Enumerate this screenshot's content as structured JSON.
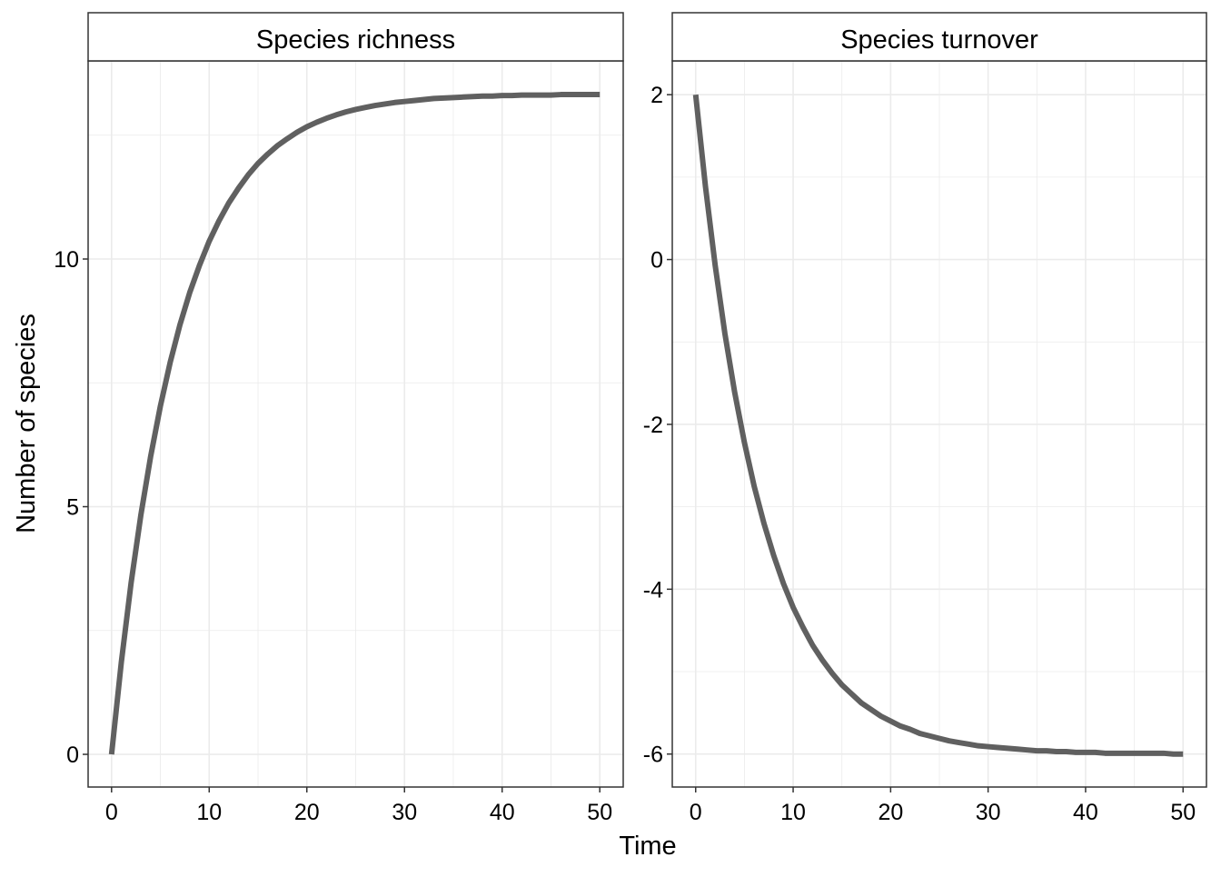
{
  "chart_data": {
    "type": "line",
    "xlabel": "Time",
    "ylabel": "Number of species",
    "line_color": "#606060",
    "panels": [
      {
        "title": "Species richness",
        "xlim": [
          -2.4,
          52.4
        ],
        "ylim": [
          -0.66,
          14.0
        ],
        "xticks": [
          0,
          10,
          20,
          30,
          40,
          50
        ],
        "yticks": [
          0,
          5,
          10
        ],
        "x": [
          0,
          1,
          2,
          3,
          4,
          5,
          6,
          7,
          8,
          9,
          10,
          11,
          12,
          13,
          14,
          15,
          16,
          17,
          18,
          19,
          20,
          21,
          22,
          23,
          24,
          25,
          26,
          27,
          28,
          29,
          30,
          31,
          32,
          33,
          34,
          35,
          36,
          37,
          38,
          39,
          40,
          41,
          42,
          43,
          44,
          45,
          46,
          47,
          48,
          49,
          50
        ],
        "y": [
          0,
          1.86,
          3.46,
          4.83,
          6.01,
          7.03,
          7.91,
          8.67,
          9.32,
          9.87,
          10.36,
          10.77,
          11.13,
          11.43,
          11.7,
          11.93,
          12.12,
          12.29,
          12.43,
          12.56,
          12.67,
          12.76,
          12.84,
          12.91,
          12.97,
          13.02,
          13.06,
          13.1,
          13.13,
          13.16,
          13.18,
          13.2,
          13.22,
          13.24,
          13.25,
          13.26,
          13.27,
          13.28,
          13.29,
          13.29,
          13.3,
          13.3,
          13.31,
          13.31,
          13.31,
          13.31,
          13.32,
          13.32,
          13.32,
          13.32,
          13.32
        ]
      },
      {
        "title": "Species turnover",
        "xlim": [
          -2.4,
          52.4
        ],
        "ylim": [
          -6.4,
          2.41
        ],
        "xticks": [
          0,
          10,
          20,
          30,
          40,
          50
        ],
        "yticks": [
          -6,
          -4,
          -2,
          0,
          2
        ],
        "x": [
          0,
          1,
          2,
          3,
          4,
          5,
          6,
          7,
          8,
          9,
          10,
          11,
          12,
          13,
          14,
          15,
          16,
          17,
          18,
          19,
          20,
          21,
          22,
          23,
          24,
          25,
          26,
          27,
          28,
          29,
          30,
          31,
          32,
          33,
          34,
          35,
          36,
          37,
          38,
          39,
          40,
          41,
          42,
          43,
          44,
          45,
          46,
          47,
          48,
          49,
          50
        ],
        "y": [
          2,
          0.89,
          -0.07,
          -0.9,
          -1.61,
          -2.22,
          -2.75,
          -3.2,
          -3.59,
          -3.93,
          -4.22,
          -4.46,
          -4.68,
          -4.86,
          -5.02,
          -5.16,
          -5.27,
          -5.38,
          -5.46,
          -5.54,
          -5.6,
          -5.66,
          -5.7,
          -5.75,
          -5.78,
          -5.81,
          -5.84,
          -5.86,
          -5.88,
          -5.9,
          -5.91,
          -5.92,
          -5.93,
          -5.94,
          -5.95,
          -5.96,
          -5.96,
          -5.97,
          -5.97,
          -5.98,
          -5.98,
          -5.98,
          -5.99,
          -5.99,
          -5.99,
          -5.99,
          -5.99,
          -5.99,
          -5.99,
          -6.0,
          -6.0
        ]
      }
    ]
  }
}
